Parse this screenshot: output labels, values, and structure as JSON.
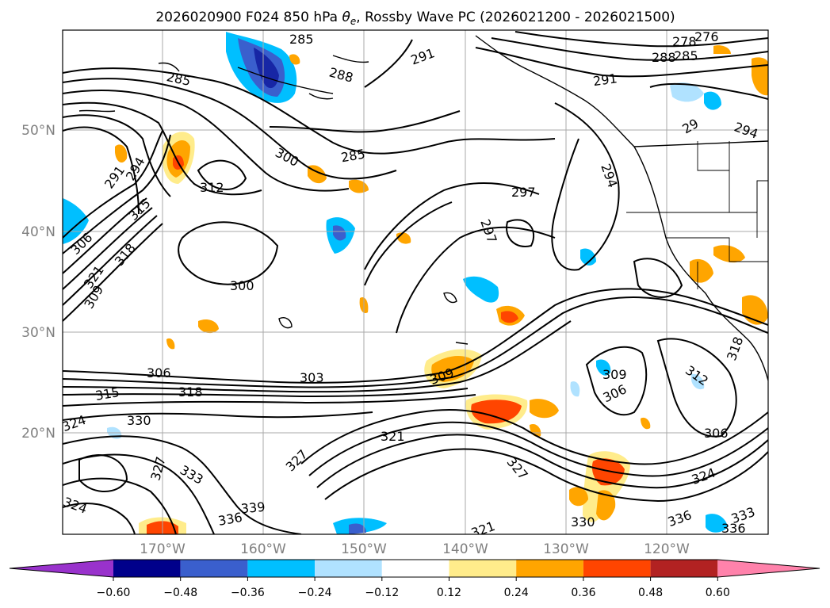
{
  "figure": {
    "title": "2026020900 F024 850 hPa θe, Rossby Wave PC (2026021200 - 2026021500)",
    "title_parts": {
      "prefix": "2026020900 F024 850 hPa ",
      "theta": "θ",
      "theta_sub": "e",
      "suffix": ", Rossby Wave PC (2026021200 - 2026021500)"
    }
  },
  "map": {
    "latitude_labels": [
      "50°N",
      "40°N",
      "30°N",
      "20°N"
    ],
    "longitude_labels": [
      "170°W",
      "160°W",
      "150°W",
      "140°W",
      "130°W",
      "120°W"
    ],
    "contour_field": "850 hPa equivalent potential temperature",
    "shaded_field": "Rossby Wave PC",
    "contour_labels": [
      "285",
      "291",
      "288",
      "276",
      "278",
      "285",
      "288",
      "291",
      "285",
      "29",
      "294",
      "291",
      "294",
      "300",
      "285",
      "312",
      "315",
      "318",
      "306",
      "321",
      "309",
      "297",
      "294",
      "297",
      "300",
      "306",
      "303",
      "315",
      "318",
      "309",
      "324",
      "330",
      "327",
      "333",
      "336",
      "339",
      "324",
      "321",
      "327",
      "327",
      "321",
      "330",
      "336",
      "333",
      "336",
      "309",
      "306",
      "312",
      "318",
      "306",
      "324"
    ]
  },
  "colorbar": {
    "tick_labels": [
      "−0.60",
      "−0.48",
      "−0.36",
      "−0.24",
      "−0.12",
      "0.12",
      "0.24",
      "0.36",
      "0.48",
      "0.60"
    ],
    "levels": [
      -0.6,
      -0.48,
      -0.36,
      -0.24,
      -0.12,
      0.12,
      0.24,
      0.36,
      0.48,
      0.6
    ],
    "colors": [
      "#9932CC",
      "#00008B",
      "#3A5FCD",
      "#00BFFF",
      "#B0E2FF",
      "#FFFFFF",
      "#FFEC8B",
      "#FFA500",
      "#FF4500",
      "#B22222",
      "#FF82AB"
    ]
  }
}
